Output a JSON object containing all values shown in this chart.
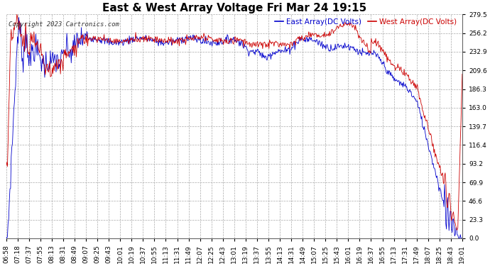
{
  "title": "East & West Array Voltage Fri Mar 24 19:15",
  "copyright": "Copyright 2023 Cartronics.com",
  "legend_east": "East Array(DC Volts)",
  "legend_west": "West Array(DC Volts)",
  "east_color": "#0000cc",
  "west_color": "#cc0000",
  "bg_color": "#ffffff",
  "plot_bg_color": "#ffffff",
  "grid_color": "#aaaaaa",
  "yticks": [
    0.0,
    23.3,
    46.6,
    69.9,
    93.2,
    116.4,
    139.7,
    163.0,
    186.3,
    209.6,
    232.9,
    256.2,
    279.5
  ],
  "ylim": [
    0.0,
    279.5
  ],
  "x_tick_labels": [
    "06:58",
    "07:18",
    "07:37",
    "07:55",
    "08:13",
    "08:31",
    "08:49",
    "09:07",
    "09:25",
    "09:43",
    "10:01",
    "10:19",
    "10:37",
    "10:55",
    "11:13",
    "11:31",
    "11:49",
    "12:07",
    "12:25",
    "12:43",
    "13:01",
    "13:19",
    "13:37",
    "13:55",
    "14:13",
    "14:31",
    "14:49",
    "15:07",
    "15:25",
    "15:43",
    "16:01",
    "16:19",
    "16:37",
    "16:55",
    "17:13",
    "17:31",
    "17:49",
    "18:07",
    "18:25",
    "18:43",
    "19:01"
  ],
  "title_fontsize": 11,
  "legend_fontsize": 7.5,
  "tick_fontsize": 6.5,
  "copyright_fontsize": 6.5,
  "figsize": [
    6.9,
    3.75
  ],
  "dpi": 100
}
